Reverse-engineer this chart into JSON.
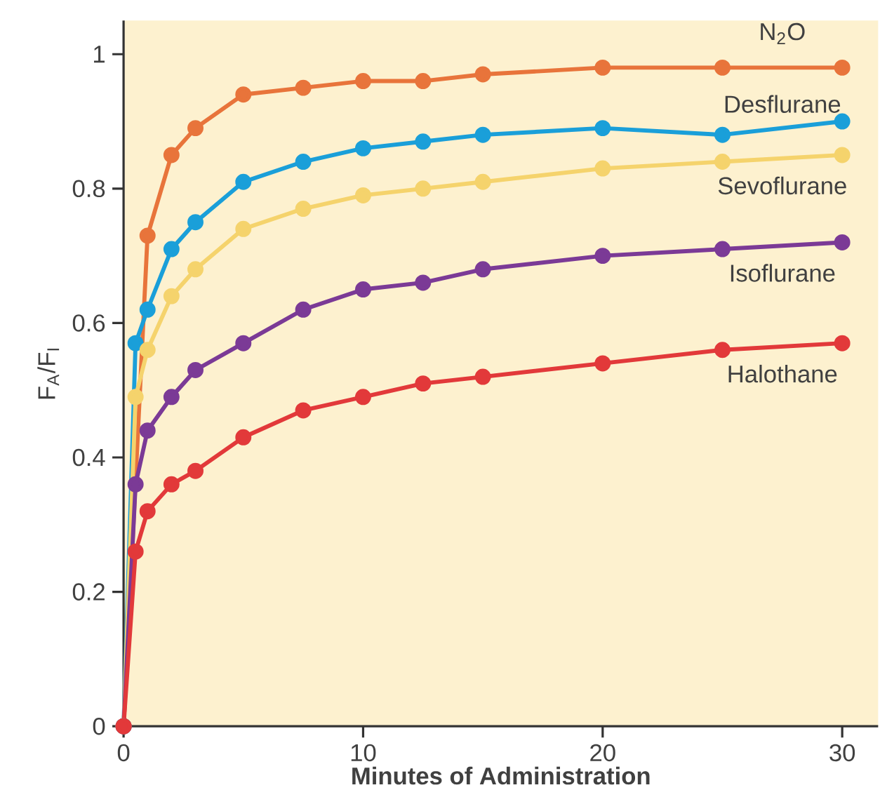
{
  "chart_data": {
    "type": "line",
    "xlabel": "Minutes of Administration",
    "ylabel": "F$_{A}$/F$_{I}$",
    "xlim": [
      0,
      31.5
    ],
    "ylim": [
      0,
      1.05
    ],
    "xticks": [
      0,
      10,
      20,
      30
    ],
    "yticks": [
      0,
      0.2,
      0.4,
      0.6,
      0.8,
      1
    ],
    "marker": "circle",
    "line_style": "solid",
    "grid": false,
    "legend": false,
    "series": [
      {
        "name": "N$_{2}$O",
        "color": "#e8743b",
        "x": [
          0,
          1,
          2,
          3,
          5,
          7.5,
          10,
          12.5,
          15,
          20,
          25,
          30
        ],
        "values": [
          0,
          0.73,
          0.85,
          0.89,
          0.94,
          0.95,
          0.96,
          0.96,
          0.97,
          0.98,
          0.98,
          0.98
        ]
      },
      {
        "name": "Desflurane",
        "color": "#1a9fd9",
        "x": [
          0,
          0.5,
          1,
          2,
          3,
          5,
          7.5,
          10,
          12.5,
          15,
          20,
          25,
          30
        ],
        "values": [
          0,
          0.57,
          0.62,
          0.71,
          0.75,
          0.81,
          0.84,
          0.86,
          0.87,
          0.88,
          0.89,
          0.88,
          0.9
        ]
      },
      {
        "name": "Sevoflurane",
        "color": "#f5d36c",
        "x": [
          0,
          0.5,
          1,
          2,
          3,
          5,
          7.5,
          10,
          12.5,
          15,
          20,
          25,
          30
        ],
        "values": [
          0,
          0.49,
          0.56,
          0.64,
          0.68,
          0.74,
          0.77,
          0.79,
          0.8,
          0.81,
          0.83,
          0.84,
          0.85
        ]
      },
      {
        "name": "Isoflurane",
        "color": "#7b3a96",
        "x": [
          0,
          0.5,
          1,
          2,
          3,
          5,
          7.5,
          10,
          12.5,
          15,
          20,
          25,
          30
        ],
        "values": [
          0,
          0.36,
          0.44,
          0.49,
          0.53,
          0.57,
          0.62,
          0.65,
          0.66,
          0.68,
          0.7,
          0.71,
          0.72
        ]
      },
      {
        "name": "Halothane",
        "color": "#e2393a",
        "x": [
          0,
          0.5,
          1,
          2,
          3,
          5,
          7.5,
          10,
          12.5,
          15,
          20,
          25,
          30
        ],
        "values": [
          0,
          0.26,
          0.32,
          0.36,
          0.38,
          0.43,
          0.47,
          0.49,
          0.51,
          0.52,
          0.54,
          0.56,
          0.57
        ]
      }
    ]
  }
}
